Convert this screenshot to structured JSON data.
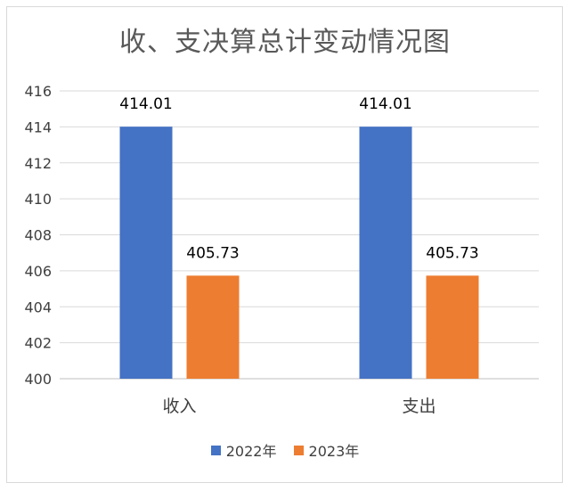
{
  "chart_data": {
    "type": "bar",
    "title": "收、支决算总计变动情况图",
    "categories": [
      "收入",
      "支出"
    ],
    "series": [
      {
        "name": "2022年",
        "values": [
          414.01,
          414.01
        ],
        "color": "#4472c4"
      },
      {
        "name": "2023年",
        "values": [
          405.73,
          405.73
        ],
        "color": "#ed7d31"
      }
    ],
    "ylim": [
      400,
      416
    ],
    "yticks": [
      400,
      402,
      404,
      406,
      408,
      410,
      412,
      414,
      416
    ],
    "grid": true,
    "legend_position": "bottom",
    "xlabel": "",
    "ylabel": ""
  }
}
